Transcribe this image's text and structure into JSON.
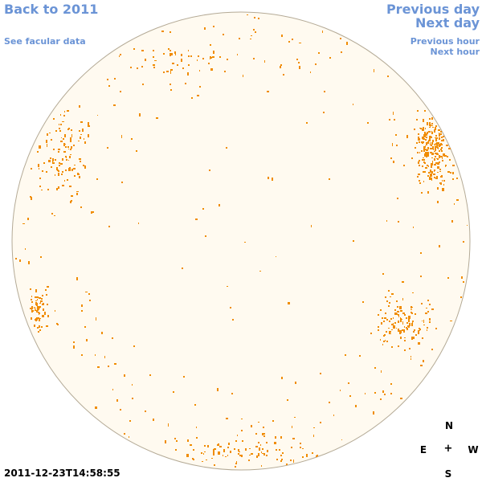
{
  "nav": {
    "back_label": "Back to 2011",
    "facular_label": "See facular data",
    "prev_day_label": "Previous day",
    "next_day_label": "Next day",
    "prev_hour_label": "Previous hour",
    "next_hour_label": "Next hour"
  },
  "compass": {
    "north": "N",
    "east": "E",
    "center": "+",
    "west": "W",
    "south": "S"
  },
  "timestamp": "2011-12-23T14:58:55",
  "colors": {
    "link": "#6b94d6",
    "disk_fill": "#fffaf0",
    "disk_stroke": "#b4aa96",
    "facula": "#f08c00"
  },
  "icons": {
    "disk": "solar-disk-icon"
  }
}
